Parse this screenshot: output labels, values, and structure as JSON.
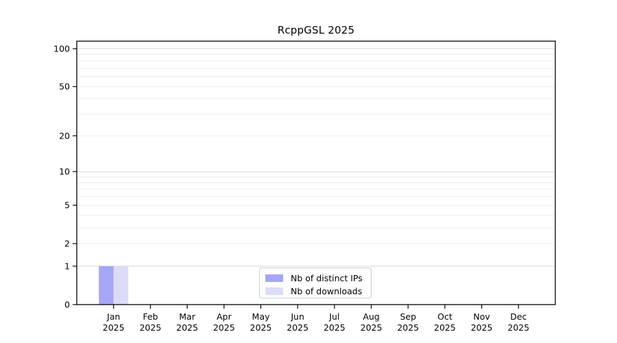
{
  "chart_data": {
    "type": "bar",
    "title": "RcppGSL 2025",
    "categories": [
      "Jan",
      "Feb",
      "Mar",
      "Apr",
      "May",
      "Jun",
      "Jul",
      "Aug",
      "Sep",
      "Oct",
      "Nov",
      "Dec"
    ],
    "category_year": "2025",
    "series": [
      {
        "name": "Nb of distinct IPs",
        "color": "#a6a6f6",
        "values": [
          1,
          0,
          0,
          0,
          0,
          0,
          0,
          0,
          0,
          0,
          0,
          0
        ]
      },
      {
        "name": "Nb of downloads",
        "color": "#dcdcf9",
        "values": [
          1,
          0,
          0,
          0,
          0,
          0,
          0,
          0,
          0,
          0,
          0,
          0
        ]
      }
    ],
    "y_axis": {
      "scale": "log1p",
      "ticks": [
        0,
        1,
        2,
        5,
        10,
        20,
        50,
        100
      ],
      "major_gridlines": [
        1,
        10,
        100
      ],
      "minor_gridlines": [
        2,
        3,
        4,
        5,
        6,
        7,
        8,
        9,
        20,
        30,
        40,
        50,
        60,
        70,
        80,
        90
      ],
      "ylim": [
        0,
        115
      ]
    },
    "x_axis": {
      "label": "",
      "tick_label_lines": 2
    },
    "legend": {
      "position": "bottom-center"
    },
    "grid": true
  },
  "style": {
    "background": "#ffffff",
    "axis_color": "#000000",
    "major_grid_color": "#d6d6d6",
    "minor_grid_color": "#ececec",
    "text_color": "#000000",
    "legend_border_color": "#cccccc"
  }
}
